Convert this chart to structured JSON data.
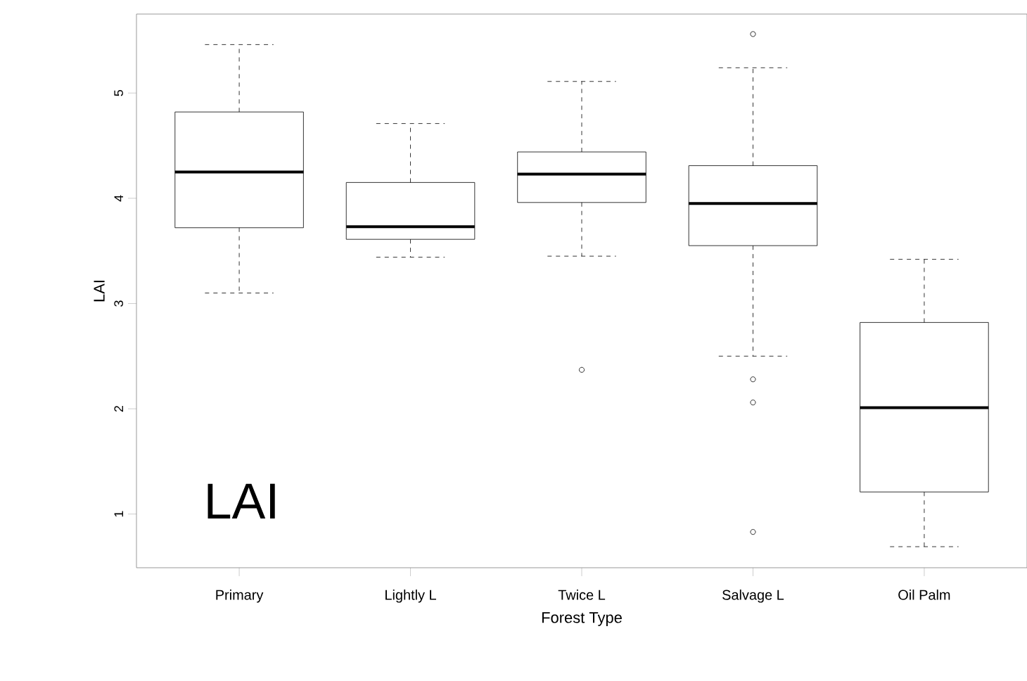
{
  "chart_data": {
    "type": "box",
    "xlabel": "Forest Type",
    "ylabel": "LAI",
    "categories": [
      "Primary",
      "Lightly L",
      "Twice L",
      "Salvage L",
      "Oil Palm"
    ],
    "boxes": [
      {
        "low": 3.1,
        "q1": 3.72,
        "median": 4.25,
        "q3": 4.82,
        "high": 5.46
      },
      {
        "low": 3.44,
        "q1": 3.61,
        "median": 3.73,
        "q3": 4.15,
        "high": 4.71
      },
      {
        "low": 3.45,
        "q1": 3.96,
        "median": 4.23,
        "q3": 4.44,
        "high": 5.11,
        "outliers": [
          2.37
        ]
      },
      {
        "low": 2.5,
        "q1": 3.55,
        "median": 3.95,
        "q3": 4.31,
        "high": 5.24,
        "outliers": [
          5.56,
          2.28,
          2.06,
          0.83
        ]
      },
      {
        "low": 0.69,
        "q1": 1.21,
        "median": 2.01,
        "q3": 2.82,
        "high": 3.42
      }
    ],
    "ylim": [
      0.49,
      5.75
    ],
    "yticks": [
      1,
      2,
      3,
      4,
      5
    ],
    "color": "#000000",
    "annotations": [
      "LAI"
    ]
  }
}
